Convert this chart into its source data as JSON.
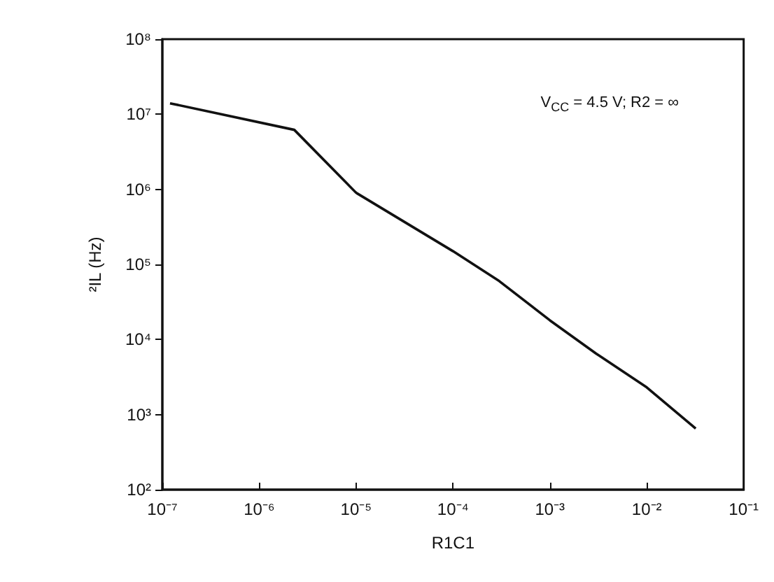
{
  "chart_data": {
    "type": "line",
    "xlabel": "R1C1",
    "ylabel": "²IL (Hz)",
    "log": "xy",
    "grid": false,
    "marker": "none",
    "line_style": "solid",
    "x": [
      1.2e-07,
      2.3e-06,
      1e-05,
      0.0001,
      0.0003,
      0.001,
      0.003,
      0.01,
      0.032
    ],
    "series": [
      {
        "color": "#111111",
        "values": [
          14000000.0,
          6200000.0,
          900000.0,
          150000.0,
          60000.0,
          18000.0,
          6500.0,
          2300.0,
          650
        ]
      }
    ],
    "xlim": [
      1e-07,
      0.1
    ],
    "xticks": [
      {
        "value": 1e-07,
        "label": "10⁻⁷"
      },
      {
        "value": 1e-06,
        "label": "10⁻⁶"
      },
      {
        "value": 1e-05,
        "label": "10⁻⁵"
      },
      {
        "value": 0.0001,
        "label": "10⁻⁴"
      },
      {
        "value": 0.001,
        "label": "10⁻³"
      },
      {
        "value": 0.01,
        "label": "10⁻²"
      },
      {
        "value": 0.1,
        "label": "10⁻¹"
      }
    ],
    "ylim": [
      100,
      100000000.0
    ],
    "yticks": [
      {
        "value": 100,
        "label": "10²"
      },
      {
        "value": 1000,
        "label": "10³"
      },
      {
        "value": 10000,
        "label": "10⁴"
      },
      {
        "value": 100000,
        "label": "10⁵"
      },
      {
        "value": 1000000,
        "label": "10⁶"
      },
      {
        "value": 10000000,
        "label": "10⁷"
      },
      {
        "value": 100000000,
        "label": "10⁸"
      }
    ],
    "annotations": [
      "V$_{CC}$ = 4.5 V; R2 = ∞"
    ]
  }
}
